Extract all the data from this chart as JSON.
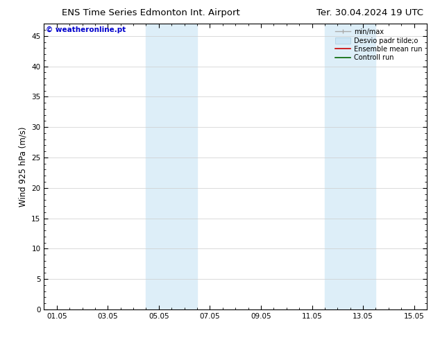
{
  "title_left": "ENS Time Series Edmonton Int. Airport",
  "title_right": "Ter. 30.04.2024 19 UTC",
  "ylabel": "Wind 925 hPa (m/s)",
  "watermark": "© weatheronline.pt",
  "x_tick_labels": [
    "01.05",
    "03.05",
    "05.05",
    "07.05",
    "09.05",
    "11.05",
    "13.05",
    "15.05"
  ],
  "x_tick_positions": [
    0,
    2,
    4,
    6,
    8,
    10,
    12,
    14
  ],
  "ylim": [
    0,
    47
  ],
  "y_ticks": [
    0,
    5,
    10,
    15,
    20,
    25,
    30,
    35,
    40,
    45
  ],
  "xlim": [
    -0.5,
    14.5
  ],
  "shaded_regions": [
    {
      "xmin": 3.5,
      "xmax": 5.5,
      "color": "#ddeef8"
    },
    {
      "xmin": 10.5,
      "xmax": 12.5,
      "color": "#ddeef8"
    }
  ],
  "bg_color": "#ffffff",
  "plot_bg_color": "#ffffff",
  "grid_color": "#cccccc",
  "spine_color": "#000000",
  "title_fontsize": 9.5,
  "tick_fontsize": 7.5,
  "ylabel_fontsize": 8.5,
  "watermark_fontsize": 7.5,
  "legend_fontsize": 7.0
}
